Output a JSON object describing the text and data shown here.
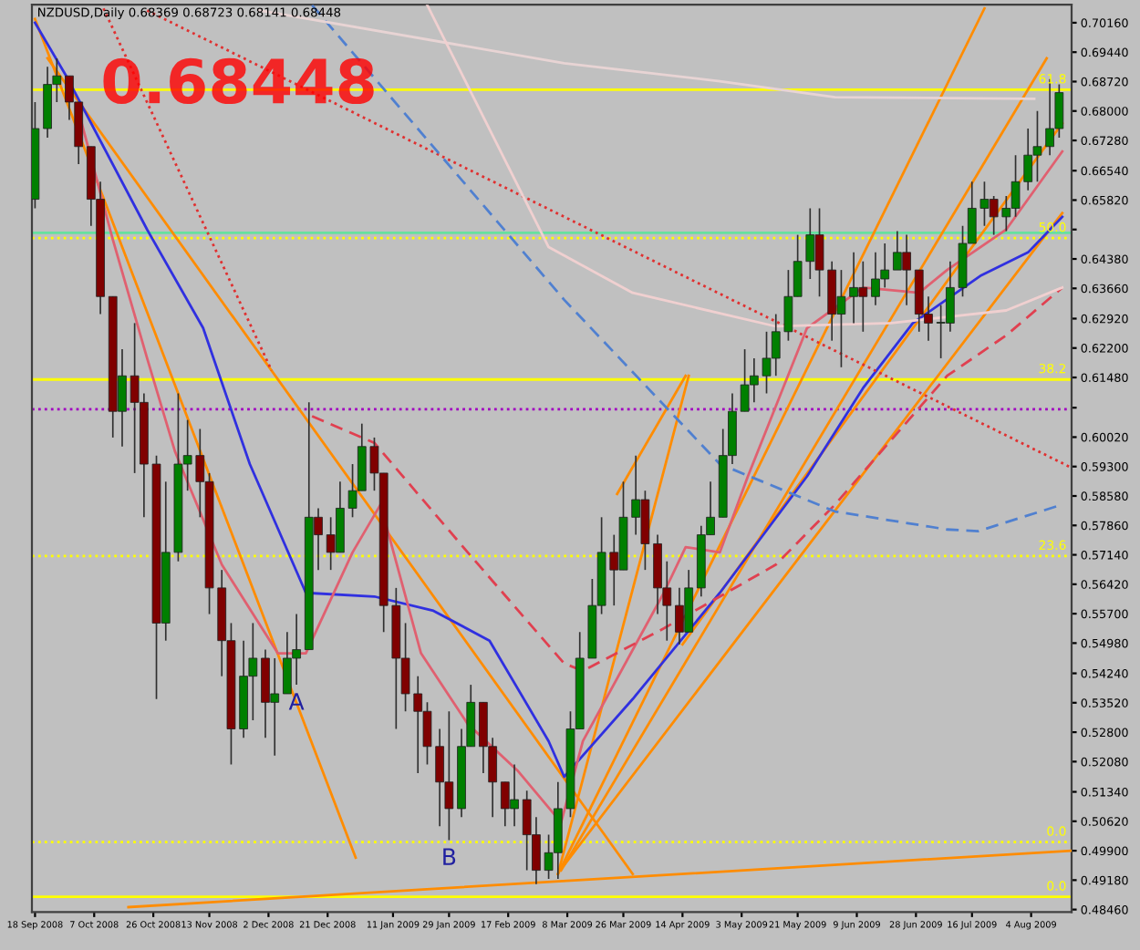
{
  "chart_data": {
    "type": "candlestick",
    "title": "NZDUSD,Daily 0.68369 0.68723 0.68141 0.68448",
    "annotations": [
      "0.68448",
      {
        "text": "A",
        "x": "2008-12-11",
        "y": 0.5396
      },
      {
        "text": "B",
        "x": "2009-01-29",
        "y": 0.5016
      },
      {
        "text": "61.8",
        "x": "2009-08-14",
        "y": 0.6852
      },
      {
        "text": "50.0",
        "x": "2009-08-14",
        "y": 0.6489
      },
      {
        "text": "38.2",
        "x": "2009-08-14",
        "y": 0.6143
      },
      {
        "text": "23.6",
        "x": "2009-08-14",
        "y": 0.5711
      },
      {
        "text": "0.0",
        "x": "2009-08-14",
        "y": 0.5011
      },
      {
        "text": "0.0",
        "x": "2009-08-14",
        "y": 0.4877
      }
    ],
    "x": [
      "2008-09-18",
      "2008-09-22",
      "2008-09-25",
      "2008-09-29",
      "2008-10-02",
      "2008-10-06",
      "2008-10-09",
      "2008-10-13",
      "2008-10-16",
      "2008-10-20",
      "2008-10-23",
      "2008-10-27",
      "2008-10-30",
      "2008-11-03",
      "2008-11-06",
      "2008-11-10",
      "2008-11-13",
      "2008-11-17",
      "2008-11-20",
      "2008-11-24",
      "2008-11-27",
      "2008-12-01",
      "2008-12-04",
      "2008-12-08",
      "2008-12-11",
      "2008-12-15",
      "2008-12-18",
      "2008-12-22",
      "2008-12-25",
      "2008-12-29",
      "2009-01-01",
      "2009-01-05",
      "2009-01-08",
      "2009-01-12",
      "2009-01-15",
      "2009-01-19",
      "2009-01-22",
      "2009-01-26",
      "2009-01-29",
      "2009-02-02",
      "2009-02-05",
      "2009-02-09",
      "2009-02-12",
      "2009-02-16",
      "2009-02-19",
      "2009-02-23",
      "2009-02-26",
      "2009-03-02",
      "2009-03-05",
      "2009-03-09",
      "2009-03-12",
      "2009-03-16",
      "2009-03-19",
      "2009-03-23",
      "2009-03-26",
      "2009-03-30",
      "2009-04-02",
      "2009-04-06",
      "2009-04-09",
      "2009-04-13",
      "2009-04-16",
      "2009-04-20",
      "2009-04-23",
      "2009-04-27",
      "2009-04-30",
      "2009-05-04",
      "2009-05-07",
      "2009-05-11",
      "2009-05-14",
      "2009-05-18",
      "2009-05-21",
      "2009-05-25",
      "2009-05-28",
      "2009-06-01",
      "2009-06-04",
      "2009-06-08",
      "2009-06-11",
      "2009-06-15",
      "2009-06-18",
      "2009-06-22",
      "2009-06-25",
      "2009-06-29",
      "2009-07-02",
      "2009-07-06",
      "2009-07-09",
      "2009-07-13",
      "2009-07-16",
      "2009-07-20",
      "2009-07-23",
      "2009-07-27",
      "2009-07-30",
      "2009-08-03",
      "2009-08-06",
      "2009-08-10",
      "2009-08-13"
    ],
    "ohlc": [
      [
        0.6584,
        0.6822,
        0.6562,
        0.6757
      ],
      [
        0.6757,
        0.6908,
        0.6735,
        0.6865
      ],
      [
        0.6865,
        0.6929,
        0.6822,
        0.6886
      ],
      [
        0.6886,
        0.6886,
        0.6778,
        0.6822
      ],
      [
        0.6822,
        0.6822,
        0.667,
        0.6713
      ],
      [
        0.6713,
        0.6713,
        0.6519,
        0.6584
      ],
      [
        0.6584,
        0.6627,
        0.6303,
        0.6346
      ],
      [
        0.6346,
        0.6346,
        0.6001,
        0.6065
      ],
      [
        0.6065,
        0.6217,
        0.5979,
        0.6152
      ],
      [
        0.6152,
        0.6281,
        0.5914,
        0.6087
      ],
      [
        0.6087,
        0.6109,
        0.5806,
        0.5936
      ],
      [
        0.5936,
        0.5957,
        0.5361,
        0.5547
      ],
      [
        0.5547,
        0.5893,
        0.5504,
        0.572
      ],
      [
        0.572,
        0.6109,
        0.5698,
        0.5936
      ],
      [
        0.5936,
        0.6044,
        0.5871,
        0.5957
      ],
      [
        0.5957,
        0.6022,
        0.5806,
        0.5893
      ],
      [
        0.5893,
        0.5914,
        0.5569,
        0.5633
      ],
      [
        0.5633,
        0.5677,
        0.5417,
        0.5504
      ],
      [
        0.5504,
        0.5547,
        0.5201,
        0.5288
      ],
      [
        0.5288,
        0.5504,
        0.5266,
        0.5417
      ],
      [
        0.5417,
        0.5547,
        0.5309,
        0.5461
      ],
      [
        0.5461,
        0.5482,
        0.5266,
        0.5353
      ],
      [
        0.5353,
        0.5461,
        0.5223,
        0.5374
      ],
      [
        0.5374,
        0.5525,
        0.5374,
        0.5461
      ],
      [
        0.5461,
        0.5569,
        0.5396,
        0.5482
      ],
      [
        0.5482,
        0.6087,
        0.5482,
        0.5806
      ],
      [
        0.5806,
        0.5828,
        0.5677,
        0.5763
      ],
      [
        0.5763,
        0.5806,
        0.5677,
        0.572
      ],
      [
        0.572,
        0.5893,
        0.572,
        0.5828
      ],
      [
        0.5828,
        0.5936,
        0.5806,
        0.5871
      ],
      [
        0.5871,
        0.6035,
        0.5871,
        0.5979
      ],
      [
        0.5979,
        0.6001,
        0.5871,
        0.5914
      ],
      [
        0.5914,
        0.5914,
        0.5525,
        0.559
      ],
      [
        0.559,
        0.5633,
        0.5288,
        0.5461
      ],
      [
        0.5461,
        0.5547,
        0.5331,
        0.5374
      ],
      [
        0.5374,
        0.5417,
        0.518,
        0.5331
      ],
      [
        0.5331,
        0.5353,
        0.5201,
        0.5245
      ],
      [
        0.5245,
        0.5288,
        0.505,
        0.5158
      ],
      [
        0.5158,
        0.5331,
        0.5016,
        0.5093
      ],
      [
        0.5093,
        0.5288,
        0.5072,
        0.5245
      ],
      [
        0.5245,
        0.5396,
        0.5245,
        0.5353
      ],
      [
        0.5353,
        0.5353,
        0.518,
        0.5245
      ],
      [
        0.5245,
        0.5266,
        0.5072,
        0.5158
      ],
      [
        0.5158,
        0.5158,
        0.505,
        0.5093
      ],
      [
        0.5093,
        0.5201,
        0.505,
        0.5115
      ],
      [
        0.5115,
        0.5137,
        0.4942,
        0.5029
      ],
      [
        0.5029,
        0.5072,
        0.4908,
        0.4942
      ],
      [
        0.4942,
        0.5029,
        0.4921,
        0.4985
      ],
      [
        0.4985,
        0.5158,
        0.4921,
        0.5093
      ],
      [
        0.5093,
        0.5331,
        0.5072,
        0.5288
      ],
      [
        0.5288,
        0.5525,
        0.5288,
        0.5461
      ],
      [
        0.5461,
        0.5655,
        0.5461,
        0.559
      ],
      [
        0.559,
        0.5806,
        0.5569,
        0.572
      ],
      [
        0.572,
        0.5763,
        0.559,
        0.5677
      ],
      [
        0.5677,
        0.5893,
        0.5677,
        0.5806
      ],
      [
        0.5806,
        0.5957,
        0.5763,
        0.5849
      ],
      [
        0.5849,
        0.5871,
        0.5677,
        0.5741
      ],
      [
        0.5741,
        0.5763,
        0.5569,
        0.5633
      ],
      [
        0.5633,
        0.5698,
        0.5504,
        0.559
      ],
      [
        0.559,
        0.5633,
        0.5495,
        0.5525
      ],
      [
        0.5525,
        0.5677,
        0.5525,
        0.5633
      ],
      [
        0.5633,
        0.5785,
        0.5612,
        0.5763
      ],
      [
        0.5763,
        0.5893,
        0.5763,
        0.5806
      ],
      [
        0.5806,
        0.6022,
        0.5806,
        0.5957
      ],
      [
        0.5957,
        0.6109,
        0.5936,
        0.6065
      ],
      [
        0.6065,
        0.6217,
        0.6065,
        0.613
      ],
      [
        0.613,
        0.6195,
        0.6087,
        0.6152
      ],
      [
        0.6152,
        0.626,
        0.6109,
        0.6195
      ],
      [
        0.6195,
        0.6303,
        0.6152,
        0.626
      ],
      [
        0.626,
        0.6411,
        0.6238,
        0.6346
      ],
      [
        0.6346,
        0.6497,
        0.6346,
        0.6432
      ],
      [
        0.6432,
        0.6562,
        0.6389,
        0.6497
      ],
      [
        0.6497,
        0.6562,
        0.6346,
        0.6411
      ],
      [
        0.6411,
        0.6432,
        0.6238,
        0.6303
      ],
      [
        0.6303,
        0.6411,
        0.6173,
        0.6346
      ],
      [
        0.6346,
        0.6454,
        0.6281,
        0.6368
      ],
      [
        0.6368,
        0.6432,
        0.626,
        0.6346
      ],
      [
        0.6346,
        0.6454,
        0.6325,
        0.6389
      ],
      [
        0.6389,
        0.6476,
        0.6368,
        0.6411
      ],
      [
        0.6411,
        0.6506,
        0.6411,
        0.6454
      ],
      [
        0.6454,
        0.6497,
        0.6325,
        0.6411
      ],
      [
        0.6411,
        0.6411,
        0.626,
        0.6303
      ],
      [
        0.6303,
        0.6346,
        0.6238,
        0.6281
      ],
      [
        0.6281,
        0.6325,
        0.6195,
        0.6281
      ],
      [
        0.6281,
        0.6432,
        0.626,
        0.6368
      ],
      [
        0.6368,
        0.6519,
        0.6346,
        0.6476
      ],
      [
        0.6476,
        0.6627,
        0.6476,
        0.6562
      ],
      [
        0.6562,
        0.6627,
        0.6519,
        0.6584
      ],
      [
        0.6584,
        0.6592,
        0.6497,
        0.6541
      ],
      [
        0.6541,
        0.6592,
        0.6506,
        0.6562
      ],
      [
        0.6562,
        0.6692,
        0.6541,
        0.6627
      ],
      [
        0.6627,
        0.6757,
        0.6606,
        0.6692
      ],
      [
        0.6692,
        0.68,
        0.6627,
        0.6713
      ],
      [
        0.6713,
        0.6878,
        0.6692,
        0.6757
      ],
      [
        0.6757,
        0.6865,
        0.6735,
        0.6845
      ]
    ],
    "series": [
      {
        "type": "line",
        "color": "#ff8c00",
        "x": [
          "2008-09-18",
          "2008-12-30"
        ],
        "values": [
          0.7025,
          0.4973
        ]
      },
      {
        "type": "line",
        "color": "#ff8c00",
        "x": [
          "2008-09-22",
          "2009-03-29"
        ],
        "values": [
          0.6929,
          0.4933
        ]
      },
      {
        "type": "line",
        "color": "#ff8c00",
        "x": [
          "2008-10-18",
          "2009-08-17"
        ],
        "values": [
          0.4852,
          0.499
        ]
      },
      {
        "type": "line",
        "color": "#ff8c00",
        "x": [
          "2009-03-05",
          "2009-07-20"
        ],
        "values": [
          0.4933,
          0.7051
        ]
      },
      {
        "type": "line",
        "color": "#ff8c00",
        "x": [
          "2009-03-24",
          "2009-04-15"
        ],
        "values": [
          0.5863,
          0.6152
        ]
      },
      {
        "type": "line",
        "color": "#ff8c00",
        "x": [
          "2009-03-05",
          "2009-04-16"
        ],
        "values": [
          0.4933,
          0.6152
        ]
      },
      {
        "type": "line",
        "color": "#ff8c00",
        "x": [
          "2009-03-06",
          "2009-08-09"
        ],
        "values": [
          0.4942,
          0.6929
        ]
      },
      {
        "type": "line",
        "color": "#ff8c00",
        "x": [
          "2009-04-14",
          "2009-08-14"
        ],
        "values": [
          0.5495,
          0.677
        ]
      },
      {
        "type": "line",
        "color": "#ff8c00",
        "x": [
          "2009-03-07",
          "2009-08-14"
        ],
        "values": [
          0.4955,
          0.655
        ]
      },
      {
        "type": "line",
        "color": "#3030e0",
        "x": [
          "2008-09-18",
          "2008-09-28",
          "2008-10-24",
          "2008-11-11",
          "2008-11-26",
          "2008-12-14",
          "2009-01-05",
          "2009-01-24",
          "2009-02-11",
          "2009-03-02",
          "2009-03-07",
          "2009-03-29",
          "2009-04-26",
          "2009-05-24",
          "2009-06-11",
          "2009-06-27",
          "2009-07-19",
          "2009-08-03",
          "2009-08-14"
        ],
        "values": [
          0.7016,
          0.6886,
          0.651,
          0.6269,
          0.5936,
          0.5621,
          0.5612,
          0.5577,
          0.5504,
          0.5258,
          0.5171,
          0.5361,
          0.5621,
          0.5906,
          0.6122,
          0.6281,
          0.6398,
          0.6454,
          0.6541
        ]
      },
      {
        "type": "line",
        "color": "#e06070",
        "x": [
          "2008-10-03",
          "2008-10-13",
          "2008-10-24",
          "2008-11-02",
          "2008-11-17",
          "2008-12-05",
          "2008-12-14",
          "2008-12-29",
          "2009-01-07",
          "2009-01-20",
          "2009-02-04",
          "2009-02-20",
          "2009-03-06",
          "2009-03-13",
          "2009-04-08",
          "2009-04-15",
          "2009-04-26",
          "2009-05-05",
          "2009-05-24",
          "2009-06-11",
          "2009-06-29",
          "2009-07-08",
          "2009-07-27",
          "2009-08-14"
        ],
        "values": [
          0.677,
          0.6485,
          0.6195,
          0.5966,
          0.569,
          0.5473,
          0.5473,
          0.572,
          0.5837,
          0.5473,
          0.53,
          0.5186,
          0.5059,
          0.5258,
          0.5621,
          0.5733,
          0.572,
          0.5906,
          0.6269,
          0.6368,
          0.6355,
          0.6411,
          0.651,
          0.6701
        ]
      },
      {
        "type": "line",
        "color": "#e04050",
        "line_style": "dashed",
        "x": [
          "2008-12-16",
          "2009-01-05",
          "2009-02-04",
          "2009-03-07",
          "2009-03-13",
          "2009-04-08",
          "2009-05-14",
          "2009-06-02",
          "2009-07-08",
          "2009-07-27",
          "2009-08-14"
        ],
        "values": [
          0.6053,
          0.5988,
          0.572,
          0.5448,
          0.543,
          0.5534,
          0.569,
          0.5837,
          0.6152,
          0.6251,
          0.6368
        ]
      },
      {
        "type": "line",
        "color": "#e03030",
        "line_style": "dotted",
        "x": [
          "2008-10-10",
          "2008-12-03"
        ],
        "values": [
          0.7051,
          0.6165
        ]
      },
      {
        "type": "line",
        "color": "#e03030",
        "line_style": "dotted",
        "x": [
          "2008-10-24",
          "2009-08-17"
        ],
        "values": [
          0.7046,
          0.5927
        ]
      },
      {
        "type": "line",
        "color": "#5080d0",
        "line_style": "dashed",
        "x": [
          "2008-12-16",
          "2009-03-07",
          "2009-04-26",
          "2009-06-02",
          "2009-07-08",
          "2009-07-18",
          "2009-08-14"
        ],
        "values": [
          0.7059,
          0.6338,
          0.5936,
          0.582,
          0.5776,
          0.5772,
          0.5837
        ]
      },
      {
        "type": "line",
        "color": "#e8d4d4",
        "x": [
          "2008-11-29",
          "2009-03-07",
          "2009-04-26",
          "2009-06-02",
          "2009-08-05"
        ],
        "values": [
          0.7046,
          0.6917,
          0.6873,
          0.6834,
          0.683
        ]
      },
      {
        "type": "line",
        "color": "#f0d0d0",
        "x": [
          "2009-01-22",
          "2009-03-02",
          "2009-03-29",
          "2009-05-14",
          "2009-06-20",
          "2009-07-27",
          "2009-08-14"
        ],
        "values": [
          0.7059,
          0.6467,
          0.6355,
          0.6273,
          0.6281,
          0.6312,
          0.6368
        ]
      }
    ],
    "ref_lines": [
      {
        "axis": "y",
        "value": 0.6852,
        "color": "#ffff00"
      },
      {
        "axis": "y",
        "value": 0.6502,
        "color": "#66e0a0"
      },
      {
        "axis": "y",
        "value": 0.6489,
        "color": "#ffff00",
        "line_style": "dotted"
      },
      {
        "axis": "y",
        "value": 0.6143,
        "color": "#ffff00"
      },
      {
        "axis": "y",
        "value": 0.607,
        "color": "#a000c0",
        "line_style": "dotted"
      },
      {
        "axis": "y",
        "value": 0.5711,
        "color": "#ffff00",
        "line_style": "dotted"
      },
      {
        "axis": "y",
        "value": 0.5011,
        "color": "#ffff00",
        "line_style": "dotted"
      },
      {
        "axis": "y",
        "value": 0.4877,
        "color": "#ffff00"
      }
    ],
    "ylim": [
      0.484,
      0.706
    ],
    "yticks": [
      {
        "value": 0.4846,
        "label": "0.48460"
      },
      {
        "value": 0.4918,
        "label": "0.49180"
      },
      {
        "value": 0.499,
        "label": "0.49900"
      },
      {
        "value": 0.5062,
        "label": "0.50620"
      },
      {
        "value": 0.5134,
        "label": "0.51340"
      },
      {
        "value": 0.5208,
        "label": "0.52080"
      },
      {
        "value": 0.528,
        "label": "0.52800"
      },
      {
        "value": 0.5352,
        "label": "0.53520"
      },
      {
        "value": 0.5424,
        "label": "0.54240"
      },
      {
        "value": 0.5498,
        "label": "0.54980"
      },
      {
        "value": 0.557,
        "label": "0.55700"
      },
      {
        "value": 0.5642,
        "label": "0.56420"
      },
      {
        "value": 0.5714,
        "label": "0.57140"
      },
      {
        "value": 0.5786,
        "label": "0.57860"
      },
      {
        "value": 0.5858,
        "label": "0.58580"
      },
      {
        "value": 0.593,
        "label": "0.59300"
      },
      {
        "value": 0.6002,
        "label": "0.60020"
      },
      {
        "value": 0.6074,
        "label": null
      },
      {
        "value": 0.6148,
        "label": "0.61480"
      },
      {
        "value": 0.622,
        "label": "0.62200"
      },
      {
        "value": 0.6292,
        "label": "0.62920"
      },
      {
        "value": 0.6366,
        "label": "0.63660"
      },
      {
        "value": 0.6438,
        "label": "0.64380"
      },
      {
        "value": 0.651,
        "label": null
      },
      {
        "value": 0.6582,
        "label": "0.65820"
      },
      {
        "value": 0.6654,
        "label": "0.66540"
      },
      {
        "value": 0.6728,
        "label": "0.67280"
      },
      {
        "value": 0.68,
        "label": "0.68000"
      },
      {
        "value": 0.6872,
        "label": "0.68720"
      },
      {
        "value": 0.6944,
        "label": "0.69440"
      },
      {
        "value": 0.7016,
        "label": "0.70160"
      }
    ],
    "xlim": [
      "2008-09-17",
      "2009-08-17"
    ],
    "xticks": [
      {
        "value": "2008-09-18",
        "label": "18 Sep 2008"
      },
      {
        "value": "2008-10-07",
        "label": "7 Oct 2008"
      },
      {
        "value": "2008-10-26",
        "label": "26 Oct 2008"
      },
      {
        "value": "2008-11-13",
        "label": "13 Nov 2008"
      },
      {
        "value": "2008-12-02",
        "label": "2 Dec 2008"
      },
      {
        "value": "2008-12-21",
        "label": "21 Dec 2008"
      },
      {
        "value": "2009-01-11",
        "label": "11 Jan 2009"
      },
      {
        "value": "2009-01-29",
        "label": "29 Jan 2009"
      },
      {
        "value": "2009-02-17",
        "label": "17 Feb 2009"
      },
      {
        "value": "2009-03-08",
        "label": "8 Mar 2009"
      },
      {
        "value": "2009-03-26",
        "label": "26 Mar 2009"
      },
      {
        "value": "2009-04-14",
        "label": "14 Apr 2009"
      },
      {
        "value": "2009-05-03",
        "label": "3 May 2009"
      },
      {
        "value": "2009-05-21",
        "label": "21 May 2009"
      },
      {
        "value": "2009-06-09",
        "label": "9 Jun 2009"
      },
      {
        "value": "2009-06-28",
        "label": "28 Jun 2009"
      },
      {
        "value": "2009-07-16",
        "label": "16 Jul 2009"
      },
      {
        "value": "2009-08-04",
        "label": "4 Aug 2009"
      }
    ]
  }
}
